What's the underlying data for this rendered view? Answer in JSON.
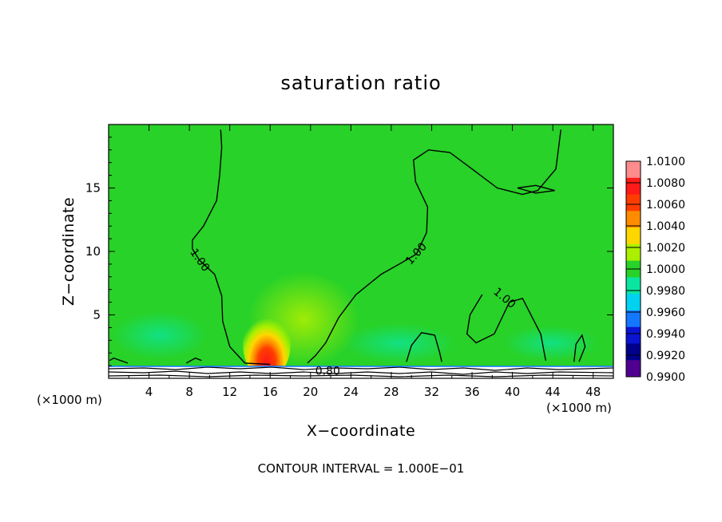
{
  "chart_data": {
    "type": "heatmap",
    "title": "saturation ratio",
    "xlabel": "X−coordinate",
    "ylabel": "Z−coordinate",
    "x_unit_label": "(×1000 m)",
    "y_unit_label": "(×1000 m)",
    "xlim": [
      0,
      50
    ],
    "ylim": [
      0,
      20
    ],
    "x_ticks": [
      4,
      8,
      12,
      16,
      20,
      24,
      28,
      32,
      36,
      40,
      44,
      48
    ],
    "y_ticks": [
      5,
      10,
      15
    ],
    "footer": "CONTOUR INTERVAL = 1.000E−01",
    "colorbar": {
      "levels": [
        "1.0100",
        "1.0080",
        "1.0060",
        "1.0040",
        "1.0020",
        "1.0000",
        "0.9980",
        "0.9960",
        "0.9940",
        "0.9920",
        "0.9900"
      ],
      "colors": [
        "#ff8c8c",
        "#ff1a1a",
        "#ff3c00",
        "#ff8c00",
        "#ffd700",
        "#aaf000",
        "#28d228",
        "#0ae6a0",
        "#00d2f0",
        "#1478ff",
        "#0a14d2",
        "#00008c",
        "#500090"
      ]
    },
    "background_color": "#28d228",
    "contour_labels": [
      {
        "text": "1.00",
        "x": 9.0,
        "z": 9.3,
        "angle": 55
      },
      {
        "text": "1.00",
        "x": 30.5,
        "z": 9.8,
        "angle": -48
      },
      {
        "text": "1.00",
        "x": 39.2,
        "z": 6.3,
        "angle": 40
      },
      {
        "text": "0.80",
        "x": 21.7,
        "z": 0.55,
        "angle": 0
      }
    ],
    "contour_lines": [
      [
        [
          11.1,
          19.6
        ],
        [
          11.2,
          18.2
        ],
        [
          11.0,
          16.0
        ],
        [
          10.7,
          14.0
        ],
        [
          9.4,
          12.0
        ],
        [
          8.3,
          10.9
        ],
        [
          8.3,
          10.2
        ],
        [
          9.0,
          9.3
        ],
        [
          10.5,
          8.2
        ],
        [
          11.2,
          6.5
        ],
        [
          11.3,
          4.5
        ],
        [
          12.0,
          2.5
        ],
        [
          13.5,
          1.2
        ],
        [
          16.0,
          1.1
        ]
      ],
      [
        [
          1.9,
          1.2
        ],
        [
          0.5,
          1.6
        ],
        [
          0.1,
          1.4
        ]
      ],
      [
        [
          7.7,
          1.2
        ],
        [
          8.6,
          1.6
        ],
        [
          9.2,
          1.4
        ]
      ],
      [
        [
          19.7,
          1.2
        ],
        [
          20.5,
          1.8
        ],
        [
          21.5,
          2.8
        ],
        [
          22.8,
          4.8
        ],
        [
          24.5,
          6.6
        ],
        [
          27.0,
          8.2
        ],
        [
          29.0,
          9.1
        ],
        [
          30.5,
          9.8
        ],
        [
          31.5,
          11.5
        ],
        [
          31.6,
          13.5
        ],
        [
          30.4,
          15.5
        ],
        [
          30.2,
          17.2
        ],
        [
          31.7,
          18.0
        ],
        [
          33.8,
          17.8
        ],
        [
          36.0,
          16.5
        ],
        [
          38.5,
          15.0
        ],
        [
          41.0,
          14.5
        ],
        [
          42.5,
          14.8
        ],
        [
          44.3,
          16.5
        ],
        [
          44.8,
          19.6
        ]
      ],
      [
        [
          40.5,
          15.0
        ],
        [
          42.3,
          14.6
        ],
        [
          44.2,
          14.8
        ],
        [
          42.3,
          15.2
        ],
        [
          40.5,
          15.0
        ]
      ],
      [
        [
          37.0,
          6.6
        ],
        [
          35.8,
          5.0
        ],
        [
          35.5,
          3.5
        ],
        [
          36.4,
          2.8
        ],
        [
          38.2,
          3.5
        ],
        [
          39.7,
          6.0
        ],
        [
          41.0,
          6.3
        ],
        [
          42.8,
          3.5
        ],
        [
          43.3,
          1.4
        ]
      ],
      [
        [
          29.5,
          1.3
        ],
        [
          30.0,
          2.6
        ],
        [
          31.0,
          3.6
        ],
        [
          32.3,
          3.4
        ],
        [
          32.8,
          2.0
        ],
        [
          33.0,
          1.3
        ]
      ],
      [
        [
          46.1,
          1.3
        ],
        [
          46.3,
          2.7
        ],
        [
          46.9,
          3.4
        ],
        [
          47.2,
          2.5
        ],
        [
          46.6,
          1.3
        ]
      ]
    ]
  }
}
